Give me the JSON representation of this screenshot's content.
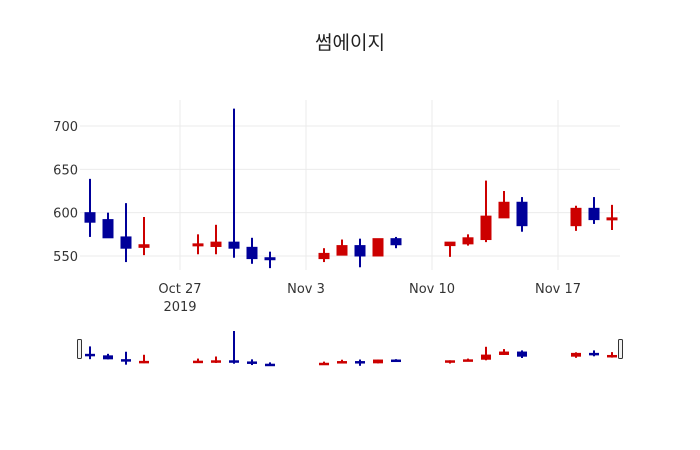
{
  "chart_data": {
    "type": "candlestick",
    "title": "썸에이지",
    "xlabel": "",
    "ylabel": "",
    "ylim": [
      525,
      720
    ],
    "yticks": [
      550,
      600,
      650,
      700
    ],
    "xticks": [
      {
        "date": "2019-10-27",
        "label": "Oct 27",
        "sublabel": "2019"
      },
      {
        "date": "2019-11-03",
        "label": "Nov 3"
      },
      {
        "date": "2019-11-10",
        "label": "Nov 10"
      },
      {
        "date": "2019-11-17",
        "label": "Nov 17"
      }
    ],
    "grid": true,
    "legend": false,
    "rangeslider": true,
    "increasing_color": "#cc0000",
    "decreasing_color": "#000099",
    "x": [
      "2019-10-22",
      "2019-10-23",
      "2019-10-24",
      "2019-10-25",
      "2019-10-28",
      "2019-10-29",
      "2019-10-30",
      "2019-10-31",
      "2019-11-01",
      "2019-11-04",
      "2019-11-05",
      "2019-11-06",
      "2019-11-07",
      "2019-11-08",
      "2019-11-11",
      "2019-11-12",
      "2019-11-13",
      "2019-11-14",
      "2019-11-15",
      "2019-11-18",
      "2019-11-19",
      "2019-11-20"
    ],
    "open": [
      600,
      592,
      572,
      560,
      562,
      561,
      566,
      560,
      548,
      547,
      551,
      562,
      550,
      570,
      562,
      564,
      569,
      594,
      612,
      585,
      605,
      593
    ],
    "high": [
      639,
      600,
      611,
      595,
      575,
      586,
      720,
      571,
      555,
      559,
      569,
      570,
      570,
      572,
      566,
      575,
      637,
      625,
      618,
      608,
      618,
      609
    ],
    "low": [
      572,
      571,
      543,
      551,
      552,
      552,
      548,
      541,
      536,
      543,
      551,
      537,
      550,
      559,
      549,
      562,
      566,
      594,
      578,
      579,
      587,
      580
    ],
    "close": [
      589,
      571,
      559,
      563,
      564,
      566,
      559,
      547,
      546,
      553,
      562,
      550,
      570,
      563,
      566,
      571,
      596,
      612,
      585,
      605,
      592,
      594
    ]
  }
}
